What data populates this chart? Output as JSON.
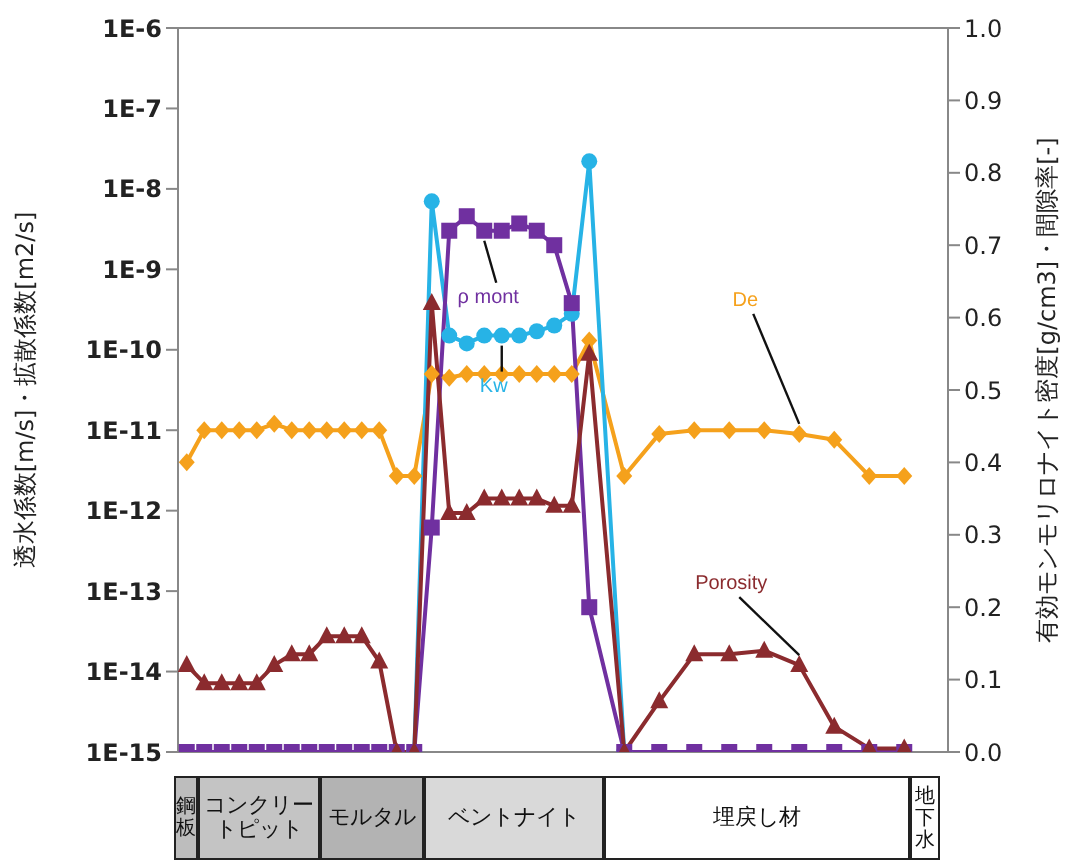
{
  "chart_data": {
    "type": "line",
    "categories": [
      null,
      null,
      null,
      null,
      null,
      null,
      null,
      null,
      null,
      null,
      null,
      null,
      null,
      null,
      null,
      null,
      null,
      null,
      null,
      null,
      null,
      null,
      null,
      null,
      null,
      null,
      null,
      null,
      null,
      null,
      null,
      null,
      null,
      null,
      null,
      null,
      null,
      null,
      null,
      null,
      null,
      null,
      null,
      null
    ],
    "series": [
      {
        "name": "De",
        "color": "#f5a11c",
        "marker": "diamond",
        "values": [
          4e-12,
          1e-11,
          1e-11,
          1e-11,
          1e-11,
          1.2e-11,
          1e-11,
          1e-11,
          1e-11,
          1e-11,
          1e-11,
          1e-11,
          2.7e-12,
          2.7e-12,
          5e-11,
          4.5e-11,
          5e-11,
          5e-11,
          5e-11,
          5e-11,
          5e-11,
          5e-11,
          5e-11,
          1.3e-10,
          null,
          2.7e-12,
          null,
          9e-12,
          null,
          1e-11,
          null,
          1e-11,
          null,
          1e-11,
          null,
          9e-12,
          null,
          7.6e-12,
          null,
          2.7e-12,
          null,
          2.7e-12,
          null,
          null
        ]
      },
      {
        "name": "Kw",
        "color": "#27b3e6",
        "marker": "circle",
        "values": [
          null,
          null,
          null,
          null,
          null,
          null,
          null,
          null,
          null,
          null,
          null,
          null,
          null,
          1e-15,
          7e-09,
          1.5e-10,
          1.2e-10,
          1.5e-10,
          1.5e-10,
          1.5e-10,
          1.7e-10,
          2e-10,
          2.8e-10,
          2.2e-08,
          null,
          1e-15,
          null,
          null,
          null,
          null,
          null,
          null,
          null,
          null,
          null,
          null,
          null,
          null,
          null,
          null,
          null,
          null,
          null,
          null
        ]
      },
      {
        "name": "ρ mont",
        "color": "#7030a0",
        "marker": "square",
        "axis": "y2",
        "values": [
          0,
          0,
          0,
          0,
          0,
          0,
          0,
          0,
          0,
          0,
          0,
          0,
          0,
          0,
          0.31,
          0.72,
          0.74,
          0.72,
          0.72,
          0.73,
          0.72,
          0.7,
          0.62,
          0.2,
          null,
          0,
          null,
          0,
          null,
          0,
          null,
          0,
          null,
          0,
          null,
          0,
          null,
          0,
          null,
          0,
          null,
          0,
          null,
          null
        ]
      },
      {
        "name": "Porosity",
        "color": "#8b2b2e",
        "marker": "triangle",
        "axis": "y2",
        "values": [
          0.12,
          0.095,
          0.095,
          0.095,
          0.095,
          0.12,
          0.135,
          0.135,
          0.16,
          0.16,
          0.16,
          0.125,
          0,
          0,
          0.62,
          0.33,
          0.33,
          0.35,
          0.35,
          0.35,
          0.35,
          0.34,
          0.34,
          0.55,
          null,
          0,
          null,
          0.07,
          null,
          0.135,
          null,
          0.135,
          null,
          0.14,
          null,
          0.12,
          null,
          0.035,
          null,
          0.005,
          null,
          0.005,
          null,
          null
        ]
      }
    ],
    "log": "y",
    "ylim": [
      1e-15,
      1e-06
    ],
    "yticks": [
      {
        "value": 1e-15,
        "label": "1E-15"
      },
      {
        "value": 1e-14,
        "label": "1E-14"
      },
      {
        "value": 1e-13,
        "label": "1E-13"
      },
      {
        "value": 1e-12,
        "label": "1E-12"
      },
      {
        "value": 1e-11,
        "label": "1E-11"
      },
      {
        "value": 1e-10,
        "label": "1E-10"
      },
      {
        "value": 1e-09,
        "label": "1E-9"
      },
      {
        "value": 1e-08,
        "label": "1E-8"
      },
      {
        "value": 1e-07,
        "label": "1E-7"
      },
      {
        "value": 1e-06,
        "label": "1E-6"
      }
    ],
    "y2lim": [
      0,
      1
    ],
    "y2ticks": [
      {
        "value": 0,
        "label": "0.0"
      },
      {
        "value": 0.1,
        "label": "0.1"
      },
      {
        "value": 0.2,
        "label": "0.2"
      },
      {
        "value": 0.3,
        "label": "0.3"
      },
      {
        "value": 0.4,
        "label": "0.4"
      },
      {
        "value": 0.5,
        "label": "0.5"
      },
      {
        "value": 0.6,
        "label": "0.6"
      },
      {
        "value": 0.7,
        "label": "0.7"
      },
      {
        "value": 0.8,
        "label": "0.8"
      },
      {
        "value": 0.9,
        "label": "0.9"
      },
      {
        "value": 1,
        "label": "1.0"
      }
    ],
    "ylabel": "透水係数[m/s]・拡散係数[m2/s]",
    "y2label": "有効モンモリロナイト密度[g/cm3]・間隙率[-]",
    "tick_labels": "y",
    "annotations": [
      "鋼板",
      "コンクリートピット",
      "モルタル",
      "ベントナイト",
      "埋戻し材",
      "地下水"
    ]
  }
}
